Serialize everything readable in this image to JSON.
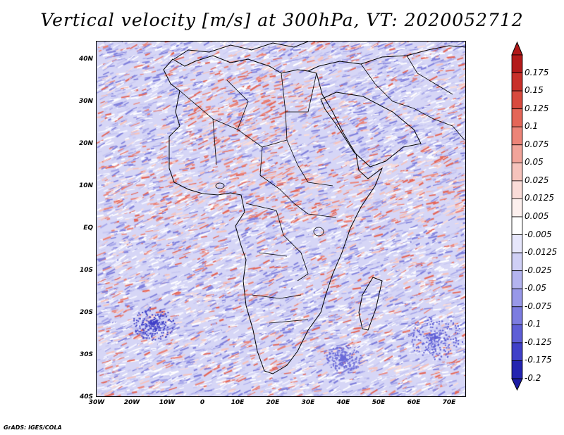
{
  "title": "Vertical velocity [m/s] at 300hPa, VT: 2020052712",
  "footer": "GrADS: IGES/COLA",
  "lat_labels": [
    "40N",
    "30N",
    "20N",
    "10N",
    "EQ",
    "10S",
    "20S",
    "30S",
    "40S"
  ],
  "lon_labels": [
    "30W",
    "20W",
    "10W",
    "0",
    "10E",
    "20E",
    "30E",
    "40E",
    "50E",
    "60E",
    "70E"
  ],
  "colorbar": {
    "levels": [
      {
        "label": "0.175",
        "color": "#b31a1a"
      },
      {
        "label": "0.15",
        "color": "#c8302a"
      },
      {
        "label": "0.125",
        "color": "#d84a3e"
      },
      {
        "label": "0.1",
        "color": "#e46658"
      },
      {
        "label": "0.075",
        "color": "#ec8478"
      },
      {
        "label": "0.05",
        "color": "#f1a49a"
      },
      {
        "label": "0.025",
        "color": "#f6c3bc"
      },
      {
        "label": "0.0125",
        "color": "#fadcd8"
      },
      {
        "label": "0.005",
        "color": "#fdf0ee"
      },
      {
        "label": "-0.005",
        "color": "#ffffff"
      },
      {
        "label": "-0.0125",
        "color": "#e6e6fb"
      },
      {
        "label": "-0.025",
        "color": "#cfcff5"
      },
      {
        "label": "-0.05",
        "color": "#b4b4ef"
      },
      {
        "label": "-0.075",
        "color": "#9898e8"
      },
      {
        "label": "-0.1",
        "color": "#7c7ce0"
      },
      {
        "label": "-0.125",
        "color": "#5e5ed6"
      },
      {
        "label": "-0.175",
        "color": "#4040c8"
      },
      {
        "label": "-0.2",
        "color": "#2424b0"
      }
    ],
    "top_color": "#b01818",
    "bottom_color": "#1c1ca4"
  }
}
